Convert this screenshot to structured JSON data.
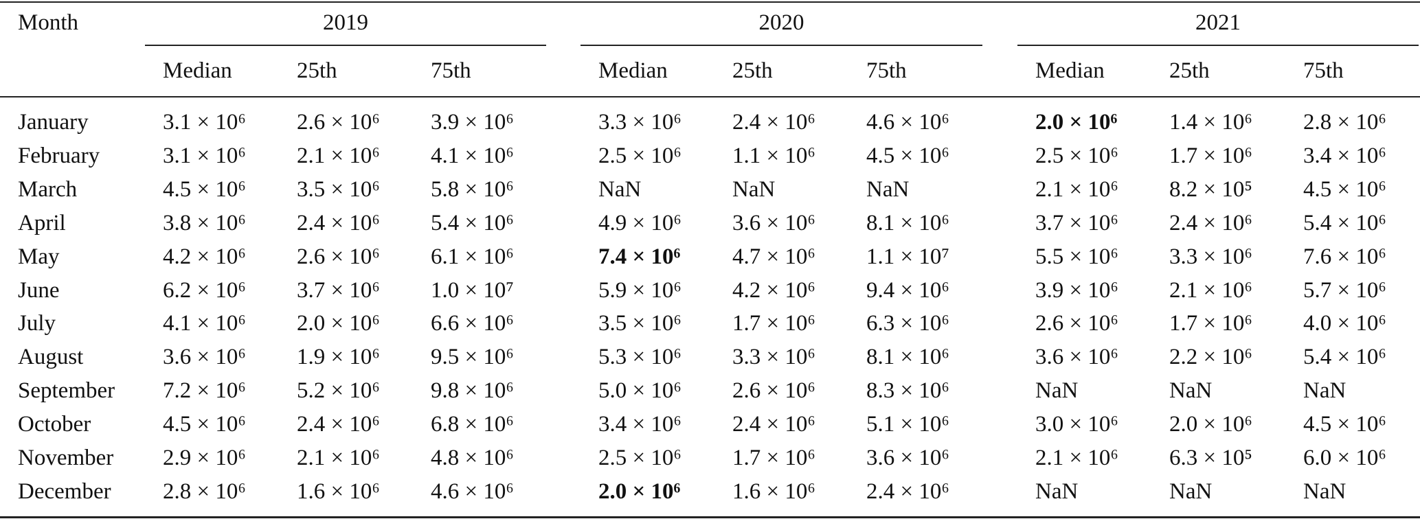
{
  "table": {
    "header": {
      "month": "Month",
      "groups": [
        "2019",
        "2020",
        "2021"
      ],
      "subheaders": [
        "Median",
        "25th",
        "75th"
      ]
    },
    "rows": [
      {
        "month": "January",
        "cells": [
          "3.1 × 10⁶",
          "2.6 × 10⁶",
          "3.9 × 10⁶",
          "3.3 × 10⁶",
          "2.4 × 10⁶",
          "4.6 × 10⁶",
          {
            "text": "2.0 × 10⁶",
            "bold": true
          },
          "1.4 × 10⁶",
          "2.8 × 10⁶"
        ]
      },
      {
        "month": "February",
        "cells": [
          "3.1 × 10⁶",
          "2.1 × 10⁶",
          "4.1 × 10⁶",
          "2.5 × 10⁶",
          "1.1 × 10⁶",
          "4.5 × 10⁶",
          "2.5 × 10⁶",
          "1.7 × 10⁶",
          "3.4 × 10⁶"
        ]
      },
      {
        "month": "March",
        "cells": [
          "4.5 × 10⁶",
          "3.5 × 10⁶",
          "5.8 × 10⁶",
          "NaN",
          "NaN",
          "NaN",
          "2.1 × 10⁶",
          "8.2 × 10⁵",
          "4.5 × 10⁶"
        ]
      },
      {
        "month": "April",
        "cells": [
          "3.8 × 10⁶",
          "2.4 × 10⁶",
          "5.4 × 10⁶",
          "4.9 × 10⁶",
          "3.6 × 10⁶",
          "8.1 × 10⁶",
          "3.7 × 10⁶",
          "2.4 × 10⁶",
          "5.4 × 10⁶"
        ]
      },
      {
        "month": "May",
        "cells": [
          "4.2 × 10⁶",
          "2.6 × 10⁶",
          "6.1 × 10⁶",
          {
            "text": "7.4 × 10⁶",
            "bold": true
          },
          "4.7 × 10⁶",
          "1.1 × 10⁷",
          "5.5 × 10⁶",
          "3.3 × 10⁶",
          "7.6 × 10⁶"
        ]
      },
      {
        "month": "June",
        "cells": [
          "6.2 × 10⁶",
          "3.7 × 10⁶",
          "1.0 × 10⁷",
          "5.9 × 10⁶",
          "4.2 × 10⁶",
          "9.4 × 10⁶",
          "3.9 × 10⁶",
          "2.1 × 10⁶",
          "5.7 × 10⁶"
        ]
      },
      {
        "month": "July",
        "cells": [
          "4.1 × 10⁶",
          "2.0 × 10⁶",
          "6.6 × 10⁶",
          "3.5 × 10⁶",
          "1.7 × 10⁶",
          "6.3 × 10⁶",
          "2.6 × 10⁶",
          "1.7 × 10⁶",
          "4.0 × 10⁶"
        ]
      },
      {
        "month": "August",
        "cells": [
          "3.6 × 10⁶",
          "1.9 × 10⁶",
          "9.5 × 10⁶",
          "5.3 × 10⁶",
          "3.3 × 10⁶",
          "8.1 × 10⁶",
          "3.6 × 10⁶",
          "2.2 × 10⁶",
          "5.4 × 10⁶"
        ]
      },
      {
        "month": "September",
        "cells": [
          "7.2 × 10⁶",
          "5.2 × 10⁶",
          "9.8 × 10⁶",
          "5.0 × 10⁶",
          "2.6 × 10⁶",
          "8.3 × 10⁶",
          "NaN",
          "NaN",
          "NaN"
        ]
      },
      {
        "month": "October",
        "cells": [
          "4.5 × 10⁶",
          "2.4 × 10⁶",
          "6.8 × 10⁶",
          "3.4 × 10⁶",
          "2.4 × 10⁶",
          "5.1 × 10⁶",
          "3.0 × 10⁶",
          "2.0 × 10⁶",
          "4.5 × 10⁶"
        ]
      },
      {
        "month": "November",
        "cells": [
          "2.9 × 10⁶",
          "2.1 × 10⁶",
          "4.8 × 10⁶",
          "2.5 × 10⁶",
          "1.7 × 10⁶",
          "3.6 × 10⁶",
          "2.1 × 10⁶",
          "6.3 × 10⁵",
          "6.0 × 10⁶"
        ]
      },
      {
        "month": "December",
        "cells": [
          "2.8 × 10⁶",
          "1.6 × 10⁶",
          "4.6 × 10⁶",
          {
            "text": "2.0 × 10⁶",
            "bold": true
          },
          "1.6 × 10⁶",
          "2.4 × 10⁶",
          "NaN",
          "NaN",
          "NaN"
        ]
      }
    ]
  }
}
